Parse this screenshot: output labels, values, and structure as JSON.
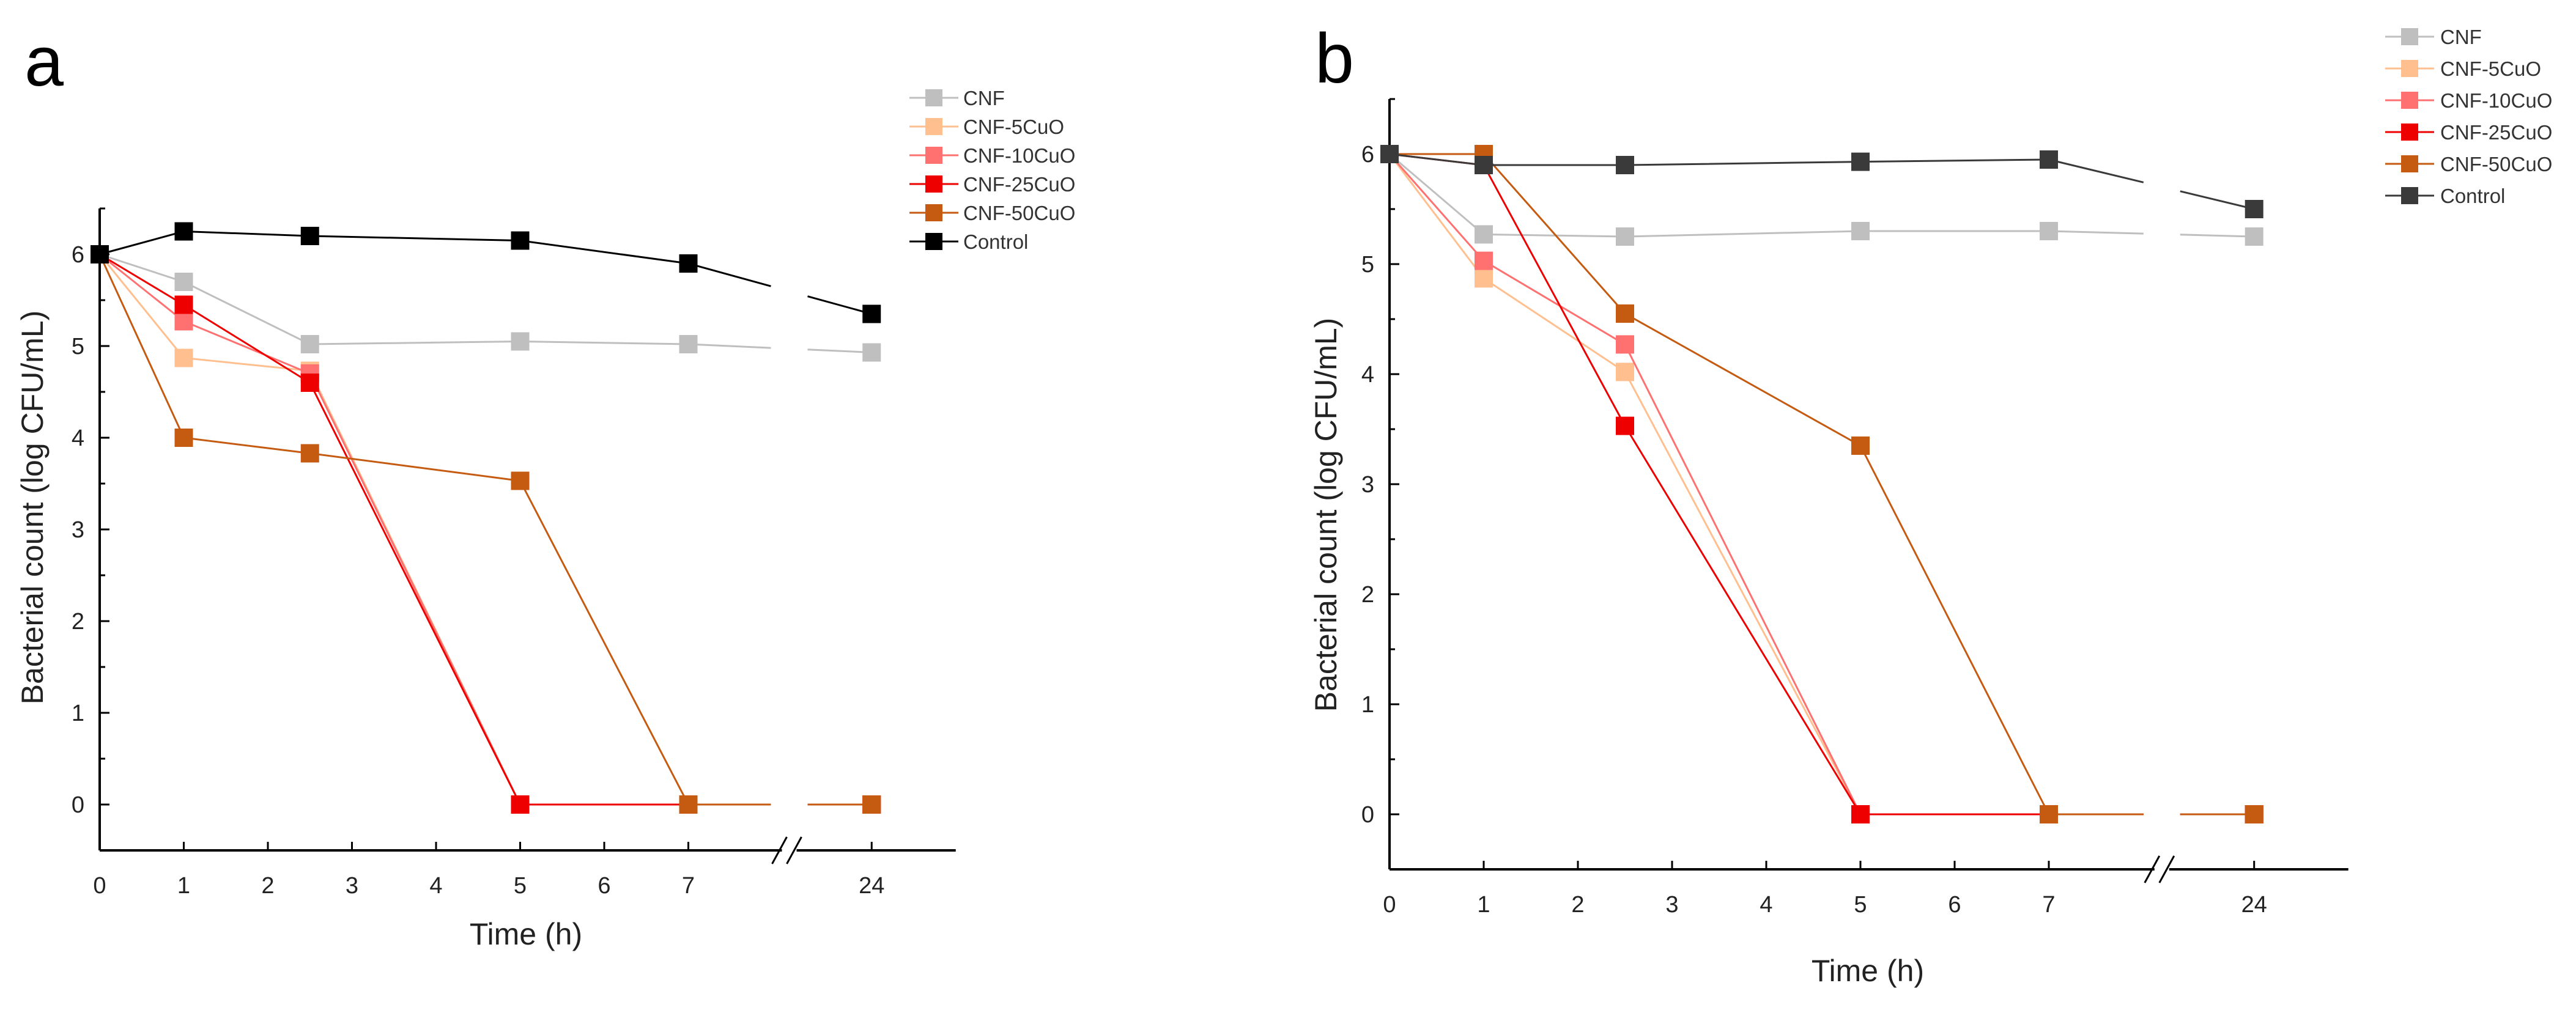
{
  "chart_data": [
    {
      "type": "line",
      "panel": "a",
      "xlabel": "Time (h)",
      "ylabel": "Bacterial count (log CFU/mL)",
      "x": [
        0,
        1,
        2.5,
        5,
        7,
        24
      ],
      "x_ticks": [
        "0",
        "1",
        "2",
        "3",
        "4",
        "5",
        "6",
        "7",
        "24"
      ],
      "y_ticks": [
        "0",
        "1",
        "2",
        "3",
        "4",
        "5",
        "6"
      ],
      "ylim": [
        -0.5,
        6.5
      ],
      "axis_break": "between 7 and 24",
      "legend_position": "top-right",
      "series": [
        {
          "name": "CNF",
          "color": "#bfbfbf",
          "values": [
            6,
            5.7,
            5.02,
            5.05,
            5.02,
            4.93
          ]
        },
        {
          "name": "CNF-5CuO",
          "color": "#ffbf8f",
          "values": [
            6,
            4.87,
            4.73,
            0,
            0,
            0
          ]
        },
        {
          "name": "CNF-10CuO",
          "color": "#ff7070",
          "values": [
            6,
            5.27,
            4.7,
            0,
            0,
            0
          ]
        },
        {
          "name": "CNF-25CuO",
          "color": "#ee0000",
          "values": [
            6,
            5.45,
            4.6,
            0,
            0,
            0
          ]
        },
        {
          "name": "CNF-50CuO",
          "color": "#c55a11",
          "values": [
            6,
            4.0,
            3.83,
            3.53,
            0,
            0
          ]
        },
        {
          "name": "Control",
          "color": "#000000",
          "values": [
            6,
            6.25,
            6.2,
            6.15,
            5.9,
            5.35
          ]
        }
      ]
    },
    {
      "type": "line",
      "panel": "b",
      "xlabel": "Time (h)",
      "ylabel": "Bacterial count (log CFU/mL)",
      "x": [
        0,
        1,
        2.5,
        5,
        7,
        24
      ],
      "x_ticks": [
        "0",
        "1",
        "2",
        "3",
        "4",
        "5",
        "6",
        "7",
        "24"
      ],
      "y_ticks": [
        "0",
        "1",
        "2",
        "3",
        "4",
        "5",
        "6"
      ],
      "ylim": [
        -0.5,
        6.5
      ],
      "axis_break": "between 7 and 24",
      "legend_position": "top-right",
      "series": [
        {
          "name": "CNF",
          "color": "#bfbfbf",
          "values": [
            6,
            5.27,
            5.25,
            5.3,
            5.3,
            5.25
          ]
        },
        {
          "name": "CNF-5CuO",
          "color": "#ffbf8f",
          "values": [
            6,
            4.87,
            4.02,
            0,
            0,
            0
          ]
        },
        {
          "name": "CNF-10CuO",
          "color": "#ff7070",
          "values": [
            6,
            5.03,
            4.27,
            0,
            0,
            0
          ]
        },
        {
          "name": "CNF-25CuO",
          "color": "#ee0000",
          "values": [
            6,
            5.9,
            3.53,
            0,
            0,
            0
          ]
        },
        {
          "name": "CNF-50CuO",
          "color": "#c55a11",
          "values": [
            6,
            6.0,
            4.55,
            3.35,
            0,
            0
          ]
        },
        {
          "name": "Control",
          "color": "#3a3a3a",
          "values": [
            6,
            5.9,
            5.9,
            5.93,
            5.95,
            5.5
          ]
        }
      ]
    }
  ]
}
